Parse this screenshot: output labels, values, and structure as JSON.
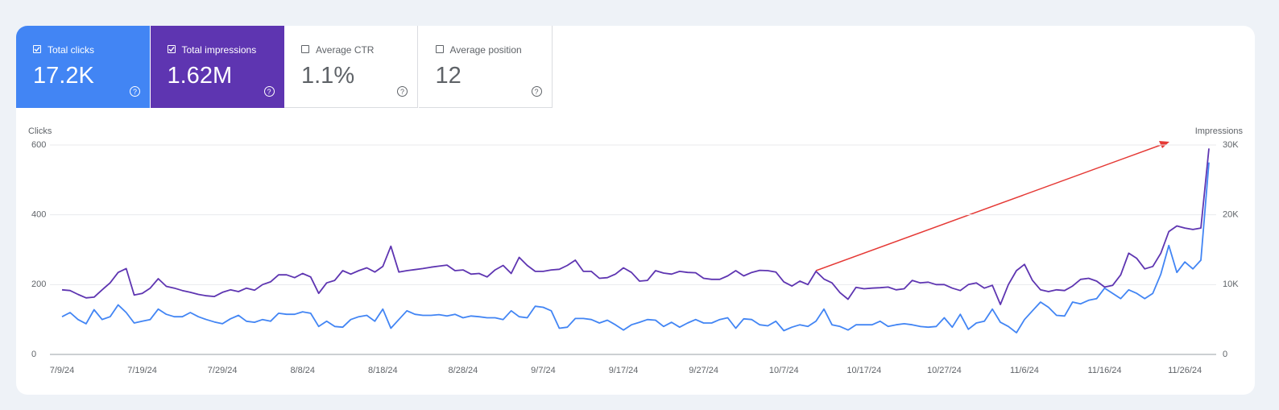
{
  "metrics": [
    {
      "label": "Total clicks",
      "value": "17.2K",
      "selected": true,
      "color": "#4285f4"
    },
    {
      "label": "Total impressions",
      "value": "1.62M",
      "selected": true,
      "color": "#5e35b1"
    },
    {
      "label": "Average CTR",
      "value": "1.1%",
      "selected": false
    },
    {
      "label": "Average position",
      "value": "12",
      "selected": false
    }
  ],
  "chart_data": {
    "type": "line",
    "ylabel": "Clicks",
    "y2label": "Impressions",
    "ylim": [
      0,
      600
    ],
    "yticks": [
      0,
      200,
      400,
      600
    ],
    "y2lim": [
      0,
      30000
    ],
    "y2ticks": [
      {
        "value": 0,
        "label": "0"
      },
      {
        "value": 10000,
        "label": "10K"
      },
      {
        "value": 20000,
        "label": "20K"
      },
      {
        "value": 30000,
        "label": "30K"
      }
    ],
    "grid": true,
    "categories": [
      "7/9/24",
      null,
      null,
      null,
      null,
      null,
      null,
      null,
      null,
      null,
      "7/19/24",
      null,
      null,
      null,
      null,
      null,
      null,
      null,
      null,
      null,
      "7/29/24",
      null,
      null,
      null,
      null,
      null,
      null,
      null,
      null,
      null,
      "8/8/24",
      null,
      null,
      null,
      null,
      null,
      null,
      null,
      null,
      null,
      "8/18/24",
      null,
      null,
      null,
      null,
      null,
      null,
      null,
      null,
      null,
      "8/28/24",
      null,
      null,
      null,
      null,
      null,
      null,
      null,
      null,
      null,
      "9/7/24",
      null,
      null,
      null,
      null,
      null,
      null,
      null,
      null,
      null,
      "9/17/24",
      null,
      null,
      null,
      null,
      null,
      null,
      null,
      null,
      null,
      "9/27/24",
      null,
      null,
      null,
      null,
      null,
      null,
      null,
      null,
      null,
      "10/7/24",
      null,
      null,
      null,
      null,
      null,
      null,
      null,
      null,
      null,
      "10/17/24",
      null,
      null,
      null,
      null,
      null,
      null,
      null,
      null,
      null,
      "10/27/24",
      null,
      null,
      null,
      null,
      null,
      null,
      null,
      null,
      null,
      "11/6/24",
      null,
      null,
      null,
      null,
      null,
      null,
      null,
      null,
      null,
      "11/16/24",
      null,
      null,
      null,
      null,
      null,
      null,
      null,
      null,
      null,
      "11/26/24",
      null,
      null,
      null
    ],
    "series": [
      {
        "color": "#4285f4",
        "axis": "y",
        "values": [
          108,
          120,
          100,
          88,
          128,
          100,
          108,
          142,
          120,
          90,
          95,
          100,
          130,
          115,
          108,
          108,
          120,
          108,
          100,
          93,
          88,
          102,
          112,
          95,
          92,
          100,
          95,
          118,
          115,
          115,
          122,
          118,
          80,
          95,
          80,
          78,
          100,
          108,
          112,
          95,
          130,
          75,
          100,
          125,
          115,
          112,
          112,
          114,
          110,
          115,
          105,
          110,
          108,
          105,
          105,
          100,
          125,
          108,
          105,
          138,
          135,
          125,
          75,
          78,
          103,
          103,
          100,
          90,
          98,
          85,
          70,
          85,
          92,
          100,
          98,
          80,
          92,
          78,
          90,
          100,
          90,
          90,
          100,
          105,
          75,
          102,
          100,
          85,
          82,
          95,
          68,
          78,
          85,
          80,
          95,
          130,
          85,
          80,
          70,
          85,
          85,
          85,
          95,
          80,
          85,
          88,
          85,
          80,
          78,
          80,
          105,
          78,
          115,
          72,
          90,
          95,
          130,
          92,
          80,
          62,
          100,
          125,
          150,
          135,
          112,
          110,
          150,
          145,
          155,
          160,
          190,
          175,
          160,
          185,
          175,
          160,
          175,
          230,
          312,
          235,
          265,
          245,
          270,
          550
        ]
      },
      {
        "color": "#5e35b1",
        "axis": "y2",
        "values": [
          9250,
          9150,
          8600,
          8100,
          8200,
          9250,
          10250,
          11750,
          12300,
          8500,
          8750,
          9500,
          10850,
          9750,
          9500,
          9150,
          8900,
          8600,
          8400,
          8300,
          8900,
          9250,
          9000,
          9500,
          9200,
          10000,
          10400,
          11400,
          11400,
          11000,
          11600,
          11100,
          8750,
          10250,
          10600,
          12000,
          11500,
          12000,
          12400,
          11800,
          12600,
          15500,
          11800,
          12000,
          12150,
          12300,
          12500,
          12650,
          12800,
          12000,
          12100,
          11500,
          11600,
          11100,
          12100,
          12750,
          11600,
          13900,
          12750,
          11900,
          11900,
          12100,
          12200,
          12750,
          13500,
          11900,
          11900,
          10900,
          11000,
          11500,
          12400,
          11750,
          10500,
          10600,
          12000,
          11650,
          11500,
          11900,
          11750,
          11700,
          10900,
          10750,
          10750,
          11250,
          12000,
          11250,
          11750,
          12050,
          12000,
          11800,
          10400,
          9800,
          10500,
          10000,
          11900,
          10800,
          10250,
          8850,
          7900,
          9600,
          9400,
          9500,
          9550,
          9650,
          9250,
          9400,
          10600,
          10250,
          10350,
          10000,
          10000,
          9500,
          9150,
          10000,
          10250,
          9500,
          9900,
          7150,
          10000,
          12000,
          12900,
          10600,
          9250,
          9000,
          9250,
          9150,
          9800,
          10750,
          10900,
          10500,
          9650,
          9900,
          11400,
          14500,
          13750,
          12250,
          12600,
          14500,
          17600,
          18400,
          18100,
          17900,
          18100,
          29500
        ]
      }
    ]
  }
}
